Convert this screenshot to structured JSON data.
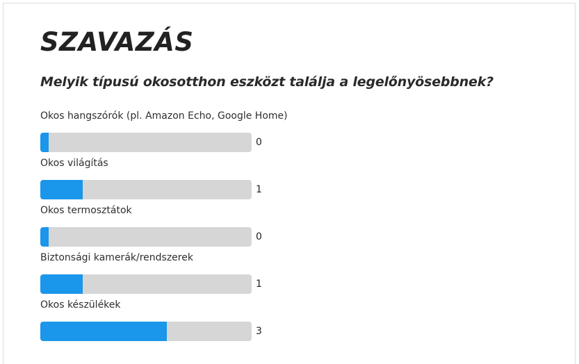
{
  "poll": {
    "title": "SZAVAZÁS",
    "question": "Melyik típusú okosotthon eszközt találja a legelőnyösebbnek?",
    "accent_color": "#1a96ea",
    "track_color": "#d6d6d6",
    "options": [
      {
        "label": "Okos hangszórók (pl. Amazon Echo, Google Home)",
        "votes": "0",
        "fill_fraction": 0.04
      },
      {
        "label": "Okos világítás",
        "votes": "1",
        "fill_fraction": 0.2
      },
      {
        "label": "Okos termosztátok",
        "votes": "0",
        "fill_fraction": 0.04
      },
      {
        "label": "Biztonsági kamerák/rendszerek",
        "votes": "1",
        "fill_fraction": 0.2
      },
      {
        "label": "Okos készülékek",
        "votes": "3",
        "fill_fraction": 0.6
      }
    ]
  }
}
